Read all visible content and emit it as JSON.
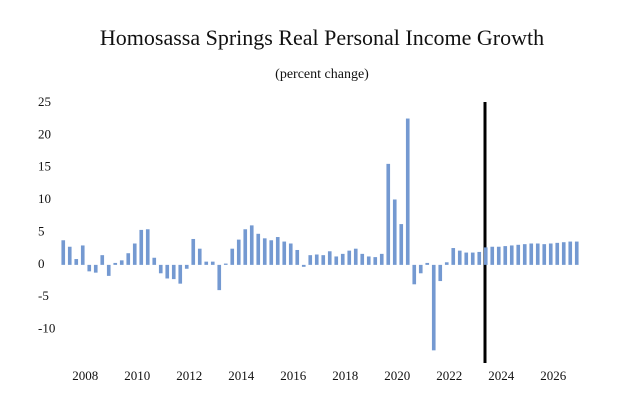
{
  "chart_data": {
    "type": "bar",
    "title": "Homosassa Springs Real Personal Income Growth",
    "subtitle": "(percent change)",
    "categories": [
      null,
      null,
      null,
      null,
      "2008",
      null,
      null,
      null,
      null,
      null,
      null,
      null,
      "2010",
      null,
      null,
      null,
      null,
      null,
      null,
      null,
      "2012",
      null,
      null,
      null,
      null,
      null,
      null,
      null,
      "2014",
      null,
      null,
      null,
      null,
      null,
      null,
      null,
      "2016",
      null,
      null,
      null,
      null,
      null,
      null,
      null,
      "2018",
      null,
      null,
      null,
      null,
      null,
      null,
      null,
      "2020",
      null,
      null,
      null,
      null,
      null,
      null,
      null,
      "2022",
      null,
      null,
      null,
      null,
      null,
      null,
      null,
      "2024",
      null,
      null,
      null,
      null,
      null,
      null,
      null,
      "2026",
      null,
      null,
      null
    ],
    "values": [
      3.8,
      2.8,
      0.9,
      3.0,
      -1.0,
      -1.2,
      1.5,
      -1.7,
      0.3,
      0.7,
      1.8,
      3.3,
      5.4,
      5.5,
      1.1,
      -1.3,
      -2.1,
      -2.2,
      -2.9,
      -0.6,
      4.0,
      2.5,
      0.5,
      0.5,
      -3.9,
      0.2,
      2.5,
      3.9,
      5.5,
      6.1,
      4.8,
      4.1,
      3.8,
      4.3,
      3.6,
      3.3,
      2.3,
      -0.3,
      1.5,
      1.6,
      1.5,
      2.1,
      1.3,
      1.7,
      2.2,
      2.5,
      1.7,
      1.3,
      1.2,
      1.7,
      15.6,
      10.1,
      6.3,
      22.6,
      -3.0,
      -1.3,
      0.3,
      -13.2,
      -2.5,
      0.4,
      2.6,
      2.2,
      1.9,
      1.9,
      2.0,
      2.7,
      2.8,
      2.8,
      2.9,
      3.0,
      3.1,
      3.2,
      3.3,
      3.3,
      3.2,
      3.3,
      3.4,
      3.5,
      3.6,
      3.6
    ],
    "color": "#7499d1",
    "ylim": [
      -15,
      25
    ],
    "yticks": [
      -10,
      -5,
      0,
      5,
      10,
      15,
      20,
      25
    ]
  }
}
